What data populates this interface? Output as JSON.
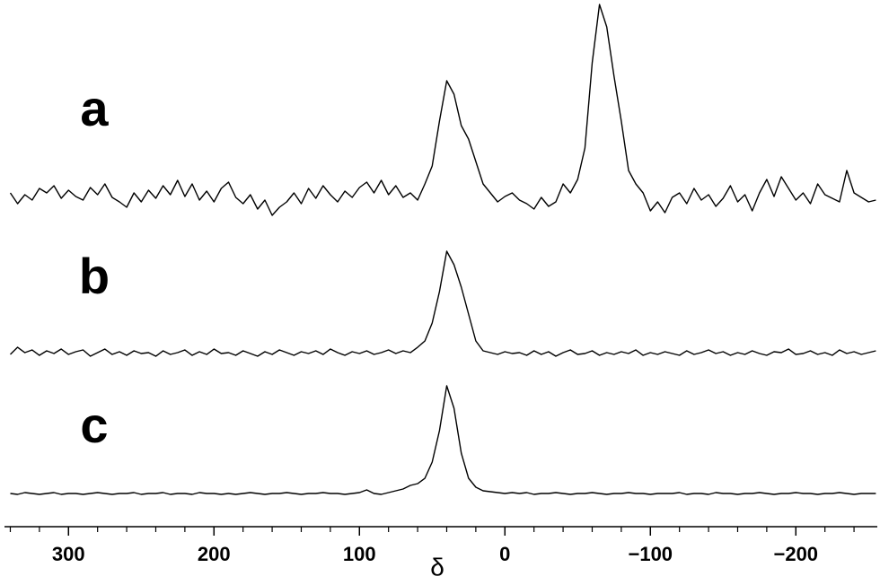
{
  "chart_data": {
    "type": "line",
    "xlabel": "δ",
    "x": [
      340,
      335,
      330,
      325,
      320,
      315,
      310,
      305,
      300,
      295,
      290,
      285,
      280,
      275,
      270,
      265,
      260,
      255,
      250,
      245,
      240,
      235,
      230,
      225,
      220,
      215,
      210,
      205,
      200,
      195,
      190,
      185,
      180,
      175,
      170,
      165,
      160,
      155,
      150,
      145,
      140,
      135,
      130,
      125,
      120,
      115,
      110,
      105,
      100,
      95,
      90,
      85,
      80,
      75,
      70,
      65,
      60,
      55,
      50,
      45,
      40,
      35,
      30,
      25,
      20,
      15,
      10,
      5,
      0,
      -5,
      -10,
      -15,
      -20,
      -25,
      -30,
      -35,
      -40,
      -45,
      -50,
      -55,
      -60,
      -65,
      -70,
      -75,
      -80,
      -85,
      -90,
      -95,
      -100,
      -105,
      -110,
      -115,
      -120,
      -125,
      -130,
      -135,
      -140,
      -145,
      -150,
      -155,
      -160,
      -165,
      -170,
      -175,
      -180,
      -185,
      -190,
      -195,
      -200,
      -205,
      -210,
      -215,
      -220,
      -225,
      -230,
      -235,
      -240,
      -245,
      -250,
      -255
    ],
    "series": [
      {
        "name": "a",
        "color": "#000000",
        "values": [
          30,
          18,
          28,
          22,
          35,
          30,
          38,
          24,
          33,
          26,
          22,
          36,
          28,
          40,
          25,
          20,
          14,
          30,
          20,
          33,
          24,
          38,
          28,
          44,
          26,
          40,
          22,
          32,
          20,
          35,
          42,
          25,
          18,
          28,
          12,
          22,
          5,
          14,
          20,
          30,
          18,
          35,
          24,
          38,
          28,
          20,
          32,
          25,
          36,
          42,
          30,
          44,
          28,
          38,
          25,
          30,
          22,
          40,
          60,
          110,
          155,
          140,
          105,
          90,
          65,
          40,
          30,
          20,
          26,
          30,
          22,
          18,
          12,
          25,
          15,
          20,
          40,
          30,
          45,
          80,
          175,
          240,
          215,
          160,
          110,
          55,
          40,
          30,
          10,
          20,
          8,
          25,
          30,
          18,
          35,
          22,
          28,
          15,
          24,
          38,
          20,
          28,
          10,
          30,
          45,
          26,
          48,
          35,
          22,
          30,
          18,
          40,
          28,
          24,
          20,
          55,
          30,
          25,
          20,
          22
        ]
      },
      {
        "name": "b",
        "color": "#000000",
        "values": [
          10,
          18,
          12,
          15,
          9,
          14,
          11,
          16,
          10,
          13,
          15,
          8,
          12,
          16,
          10,
          13,
          9,
          14,
          11,
          12,
          8,
          14,
          10,
          12,
          15,
          9,
          13,
          10,
          16,
          11,
          12,
          9,
          14,
          11,
          8,
          13,
          10,
          15,
          12,
          9,
          13,
          11,
          14,
          10,
          16,
          12,
          9,
          13,
          11,
          14,
          10,
          12,
          15,
          11,
          14,
          12,
          18,
          25,
          45,
          80,
          125,
          110,
          85,
          55,
          25,
          14,
          12,
          10,
          13,
          11,
          12,
          9,
          14,
          10,
          13,
          8,
          12,
          15,
          10,
          11,
          14,
          9,
          12,
          10,
          13,
          11,
          15,
          9,
          12,
          10,
          13,
          11,
          9,
          14,
          10,
          12,
          15,
          11,
          13,
          9,
          12,
          10,
          14,
          11,
          9,
          13,
          12,
          16,
          10,
          11,
          14,
          10,
          12,
          9,
          15,
          11,
          13,
          10,
          12,
          14
        ]
      },
      {
        "name": "c",
        "color": "#000000",
        "values": [
          5,
          4,
          6,
          5,
          4,
          5,
          6,
          4,
          5,
          5,
          4,
          5,
          6,
          5,
          4,
          5,
          5,
          6,
          4,
          5,
          5,
          6,
          4,
          5,
          5,
          4,
          6,
          5,
          5,
          4,
          5,
          4,
          5,
          6,
          5,
          4,
          5,
          5,
          6,
          5,
          4,
          5,
          5,
          6,
          5,
          5,
          4,
          5,
          6,
          9,
          5,
          4,
          6,
          8,
          10,
          14,
          16,
          22,
          40,
          75,
          125,
          100,
          50,
          22,
          12,
          8,
          7,
          6,
          5,
          6,
          5,
          6,
          4,
          5,
          5,
          6,
          5,
          4,
          5,
          5,
          6,
          5,
          4,
          5,
          5,
          6,
          5,
          5,
          4,
          5,
          5,
          5,
          6,
          4,
          5,
          5,
          4,
          6,
          5,
          5,
          4,
          5,
          5,
          6,
          5,
          4,
          5,
          5,
          6,
          5,
          5,
          4,
          5,
          5,
          6,
          5,
          4,
          5,
          5,
          5
        ]
      }
    ],
    "xlim": [
      344,
      -256
    ],
    "xticks": [
      300,
      200,
      100,
      0,
      {
        "value": -100,
        "label": "−100"
      },
      {
        "value": -200,
        "label": "−200"
      }
    ],
    "xminorticks": [
      340,
      320,
      280,
      260,
      240,
      220,
      180,
      160,
      140,
      120,
      80,
      60,
      40,
      20,
      -20,
      -40,
      -60,
      -80,
      -120,
      -140,
      -160,
      -180,
      -220,
      -240
    ]
  }
}
